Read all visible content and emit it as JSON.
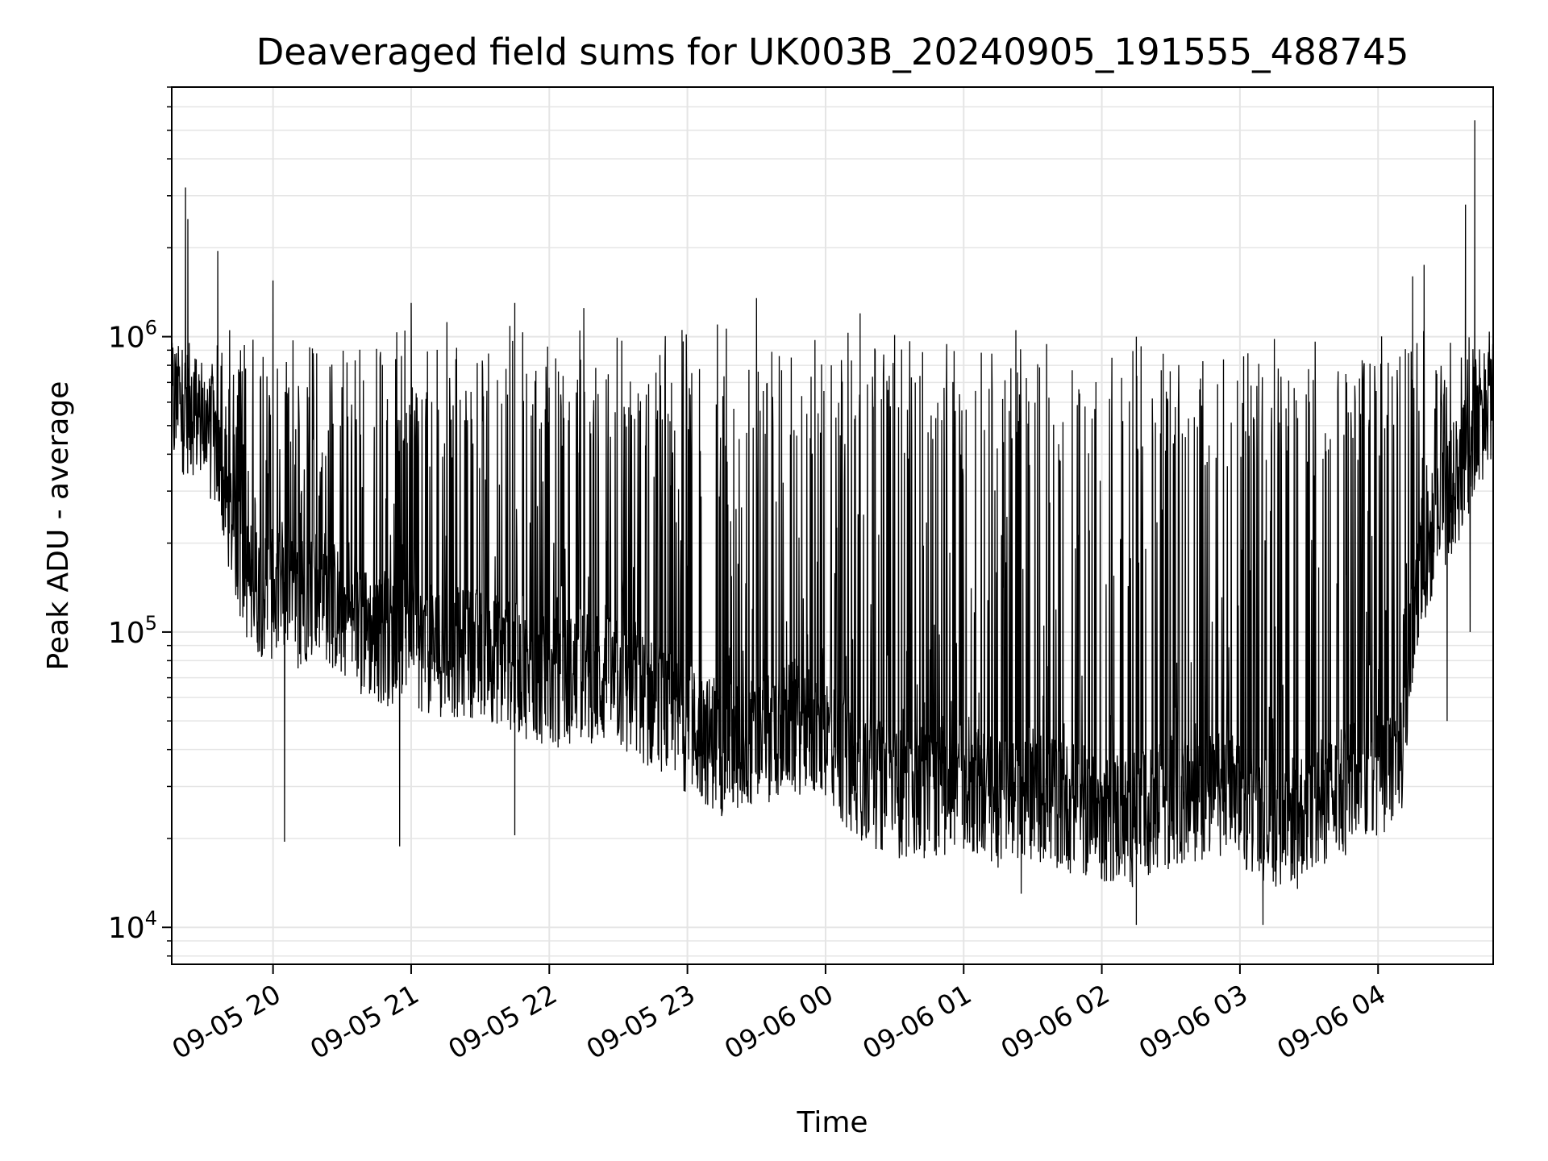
{
  "chart_data": {
    "type": "line",
    "title": "Deaveraged field sums for UK003B_20240905_191555_488745",
    "xlabel": "Time",
    "ylabel": "Peak ADU - average",
    "yscale": "log",
    "ylim": [
      7500,
      7000000
    ],
    "xlim": [
      "2024-09-05 19:16",
      "2024-09-06 04:50"
    ],
    "grid": true,
    "line_color": "#000000",
    "grid_color": "#e5e5e5",
    "xticks": [
      {
        "t": "2024-09-05 20:00",
        "label": "09-05 20"
      },
      {
        "t": "2024-09-05 21:00",
        "label": "09-05 21"
      },
      {
        "t": "2024-09-05 22:00",
        "label": "09-05 22"
      },
      {
        "t": "2024-09-06 00:00",
        "label": "09-06 00",
        "skip": false
      },
      {
        "t": "2024-09-05 23:00",
        "label": "09-05 23"
      },
      {
        "t": "2024-09-06 01:00",
        "label": "09-06 01"
      },
      {
        "t": "2024-09-06 02:00",
        "label": "09-06 02"
      },
      {
        "t": "2024-09-06 03:00",
        "label": "09-06 03"
      },
      {
        "t": "2024-09-06 04:00",
        "label": "09-06 04"
      }
    ],
    "yticks": [
      {
        "value": 10000,
        "base": "10",
        "exp": "4"
      },
      {
        "value": 100000,
        "base": "10",
        "exp": "5"
      },
      {
        "value": 1000000,
        "base": "10",
        "exp": "6"
      }
    ],
    "series": [
      {
        "baseline": [
          [
            "2024-09-05 19:16",
            600000
          ],
          [
            "2024-09-05 19:25",
            600000
          ],
          [
            "2024-09-05 19:35",
            450000
          ],
          [
            "2024-09-05 19:42",
            250000
          ],
          [
            "2024-09-05 19:50",
            150000
          ],
          [
            "2024-09-05 20:00",
            140000
          ],
          [
            "2024-09-05 20:10",
            130000
          ],
          [
            "2024-09-05 20:20",
            150000
          ],
          [
            "2024-09-05 20:30",
            120000
          ],
          [
            "2024-09-05 20:45",
            100000
          ],
          [
            "2024-09-05 21:00",
            95000
          ],
          [
            "2024-09-05 21:15",
            90000
          ],
          [
            "2024-09-05 21:30",
            90000
          ],
          [
            "2024-09-05 21:45",
            80000
          ],
          [
            "2024-09-05 22:00",
            70000
          ],
          [
            "2024-09-05 22:15",
            75000
          ],
          [
            "2024-09-05 22:30",
            70000
          ],
          [
            "2024-09-05 22:45",
            60000
          ],
          [
            "2024-09-05 23:00",
            50000
          ],
          [
            "2024-09-05 23:15",
            42000
          ],
          [
            "2024-09-05 23:30",
            45000
          ],
          [
            "2024-09-05 23:45",
            50000
          ],
          [
            "2024-09-06 00:00",
            48000
          ],
          [
            "2024-09-06 00:10",
            36000
          ],
          [
            "2024-09-06 00:30",
            30000
          ],
          [
            "2024-09-06 00:45",
            30000
          ],
          [
            "2024-09-06 01:00",
            32000
          ],
          [
            "2024-09-06 01:15",
            28000
          ],
          [
            "2024-09-06 01:30",
            30000
          ],
          [
            "2024-09-06 01:45",
            27000
          ],
          [
            "2024-09-06 02:00",
            25000
          ],
          [
            "2024-09-06 02:15",
            24000
          ],
          [
            "2024-09-06 02:30",
            28000
          ],
          [
            "2024-09-06 02:45",
            30000
          ],
          [
            "2024-09-06 03:00",
            28000
          ],
          [
            "2024-09-06 03:15",
            24000
          ],
          [
            "2024-09-06 03:30",
            26000
          ],
          [
            "2024-09-06 03:45",
            30000
          ],
          [
            "2024-09-06 04:00",
            35000
          ],
          [
            "2024-09-06 04:10",
            40000
          ],
          [
            "2024-09-06 04:15",
            120000
          ],
          [
            "2024-09-06 04:25",
            250000
          ],
          [
            "2024-09-06 04:35",
            350000
          ],
          [
            "2024-09-06 04:42",
            500000
          ],
          [
            "2024-09-06 04:50",
            700000
          ]
        ],
        "peak_envelope": [
          [
            "2024-09-05 19:16",
            1100000
          ],
          [
            "2024-09-05 19:30",
            1000000
          ],
          [
            "2024-09-05 20:00",
            1000000
          ],
          [
            "2024-09-05 21:00",
            1000000
          ],
          [
            "2024-09-05 22:00",
            1000000
          ],
          [
            "2024-09-05 23:00",
            1000000
          ],
          [
            "2024-09-06 00:00",
            1000000
          ],
          [
            "2024-09-06 01:00",
            950000
          ],
          [
            "2024-09-06 02:00",
            900000
          ],
          [
            "2024-09-06 03:00",
            900000
          ],
          [
            "2024-09-06 04:00",
            1000000
          ],
          [
            "2024-09-06 04:50",
            1100000
          ]
        ],
        "spikes": [
          [
            "2024-09-05 19:22",
            3200000
          ],
          [
            "2024-09-05 19:23",
            2500000
          ],
          [
            "2024-09-05 19:36",
            1950000
          ],
          [
            "2024-09-05 20:00",
            1550000
          ],
          [
            "2024-09-05 21:00",
            1300000
          ],
          [
            "2024-09-05 21:45",
            1300000
          ],
          [
            "2024-09-05 22:15",
            1250000
          ],
          [
            "2024-09-05 23:30",
            1350000
          ],
          [
            "2024-09-06 00:15",
            1200000
          ],
          [
            "2024-09-06 02:15",
            1000000
          ],
          [
            "2024-09-06 04:15",
            1600000
          ],
          [
            "2024-09-06 04:20",
            1750000
          ],
          [
            "2024-09-06 04:38",
            2800000
          ],
          [
            "2024-09-06 04:42",
            5400000
          ]
        ],
        "dips": [
          [
            "2024-09-05 20:05",
            19500
          ],
          [
            "2024-09-05 20:55",
            18800
          ],
          [
            "2024-09-05 21:45",
            20500
          ],
          [
            "2024-09-06 02:15",
            10200
          ],
          [
            "2024-09-06 03:10",
            10200
          ],
          [
            "2024-09-06 03:25",
            13500
          ],
          [
            "2024-09-06 01:25",
            13000
          ],
          [
            "2024-09-06 04:30",
            50000
          ],
          [
            "2024-09-06 04:40",
            100000
          ]
        ]
      }
    ]
  }
}
